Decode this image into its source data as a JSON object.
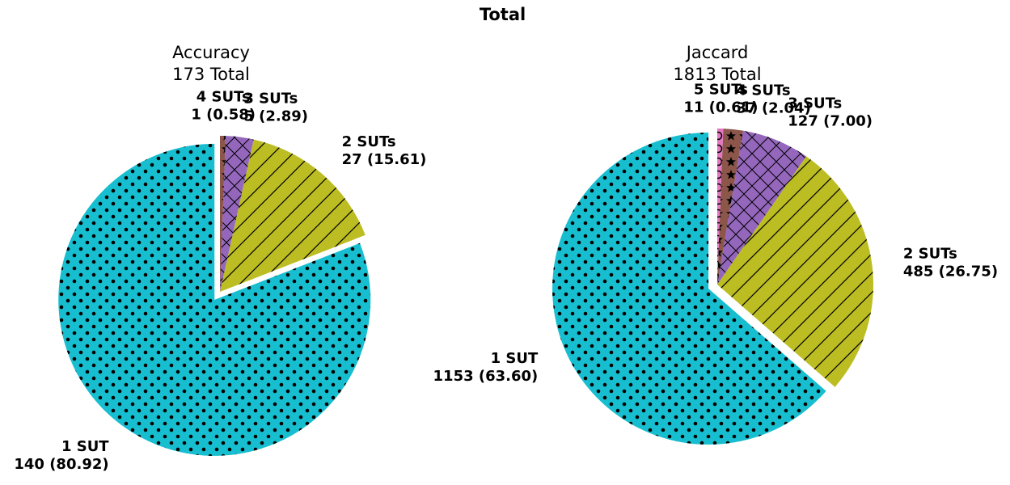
{
  "figure": {
    "title": "Total"
  },
  "chart_data": [
    {
      "type": "pie",
      "title": "Accuracy",
      "subtitle": "173 Total",
      "series": [
        {
          "name": "1 SUT",
          "value": 140,
          "value_label": "140 (80.92)",
          "color": "#17becf",
          "hatch": "dots"
        },
        {
          "name": "2 SUTs",
          "value": 27,
          "value_label": "27 (15.61)",
          "color": "#bcbd22",
          "hatch": "diagonal"
        },
        {
          "name": "3 SUTs",
          "value": 5,
          "value_label": "5 (2.89)",
          "color": "#9467bd",
          "hatch": "crosshatch"
        },
        {
          "name": "4 SUTs",
          "value": 1,
          "value_label": "1 (0.58)",
          "color": "#8c564b",
          "hatch": "stars"
        }
      ],
      "exploded": "1 SUT"
    },
    {
      "type": "pie",
      "title": "Jaccard",
      "subtitle": "1813 Total",
      "series": [
        {
          "name": "1 SUT",
          "value": 1153,
          "value_label": "1153 (63.60)",
          "color": "#17becf",
          "hatch": "dots"
        },
        {
          "name": "2 SUTs",
          "value": 485,
          "value_label": "485 (26.75)",
          "color": "#bcbd22",
          "hatch": "diagonal"
        },
        {
          "name": "3 SUTs",
          "value": 127,
          "value_label": "127 (7.00)",
          "color": "#9467bd",
          "hatch": "crosshatch"
        },
        {
          "name": "4 SUTs",
          "value": 37,
          "value_label": "37 (2.04)",
          "color": "#8c564b",
          "hatch": "stars"
        },
        {
          "name": "5 SUTs",
          "value": 11,
          "value_label": "11 (0.61)",
          "color": "#e377c2",
          "hatch": "circles"
        }
      ],
      "exploded": "1 SUT"
    }
  ]
}
